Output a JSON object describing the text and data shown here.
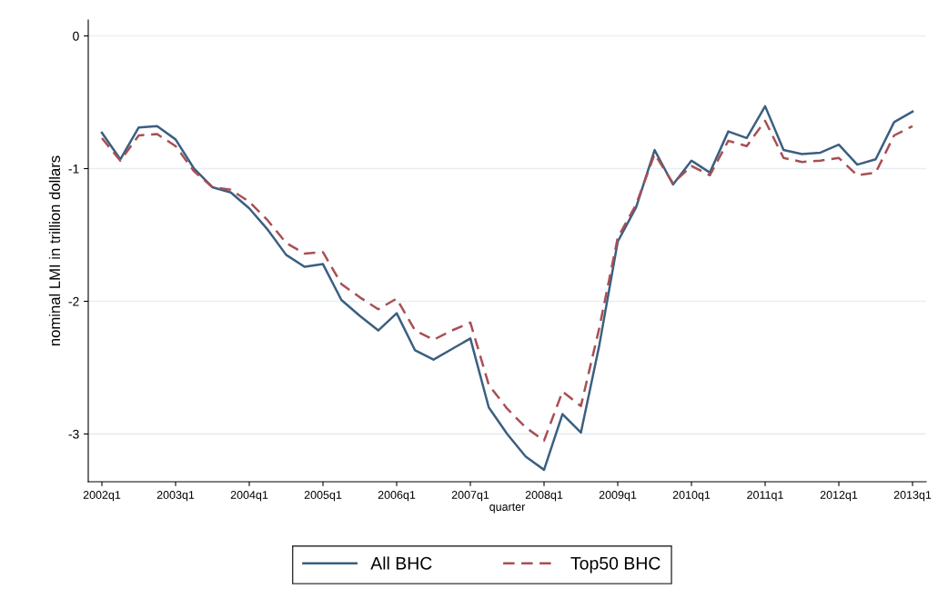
{
  "chart_data": {
    "type": "line",
    "xlabel": "quarter",
    "ylabel": "nominal LMI in trillion dollars",
    "categories": [
      "2002q1",
      null,
      null,
      null,
      "2003q1",
      null,
      null,
      null,
      "2004q1",
      null,
      null,
      null,
      "2005q1",
      null,
      null,
      null,
      "2006q1",
      null,
      null,
      null,
      "2007q1",
      null,
      null,
      null,
      "2008q1",
      null,
      null,
      null,
      "2009q1",
      null,
      null,
      null,
      "2010q1",
      null,
      null,
      null,
      "2011q1",
      null,
      null,
      null,
      "2012q1",
      null,
      null,
      null,
      "2013q1"
    ],
    "ylim": [
      -3.36,
      0.12
    ],
    "yticks": [
      -3,
      -2,
      -1,
      0
    ],
    "grid": "y",
    "legend": "bottom",
    "marker": "none",
    "series": [
      {
        "name": "All BHC",
        "color": "#3a5f82",
        "line_style": "solid",
        "values": [
          -0.73,
          -0.93,
          -0.69,
          -0.68,
          -0.78,
          -1.0,
          -1.14,
          -1.18,
          -1.3,
          -1.46,
          -1.65,
          -1.74,
          -1.72,
          -1.99,
          -2.11,
          -2.22,
          -2.09,
          -2.37,
          -2.44,
          -2.36,
          -2.28,
          -2.8,
          -3.0,
          -3.17,
          -3.27,
          -2.85,
          -2.99,
          -2.33,
          -1.55,
          -1.29,
          -0.86,
          -1.12,
          -0.94,
          -1.03,
          -0.72,
          -0.77,
          -0.53,
          -0.86,
          -0.89,
          -0.88,
          -0.82,
          -0.97,
          -0.93,
          -0.65,
          -0.57
        ]
      },
      {
        "name": "Top50 BHC",
        "color": "#a84f55",
        "line_style": "dashed",
        "values": [
          -0.77,
          -0.94,
          -0.75,
          -0.74,
          -0.83,
          -1.02,
          -1.14,
          -1.16,
          -1.25,
          -1.39,
          -1.56,
          -1.64,
          -1.63,
          -1.87,
          -1.97,
          -2.06,
          -1.98,
          -2.22,
          -2.29,
          -2.22,
          -2.16,
          -2.63,
          -2.81,
          -2.95,
          -3.05,
          -2.68,
          -2.79,
          -2.2,
          -1.52,
          -1.27,
          -0.89,
          -1.11,
          -0.98,
          -1.05,
          -0.79,
          -0.83,
          -0.64,
          -0.92,
          -0.95,
          -0.94,
          -0.92,
          -1.05,
          -1.03,
          -0.75,
          -0.68
        ]
      }
    ]
  }
}
